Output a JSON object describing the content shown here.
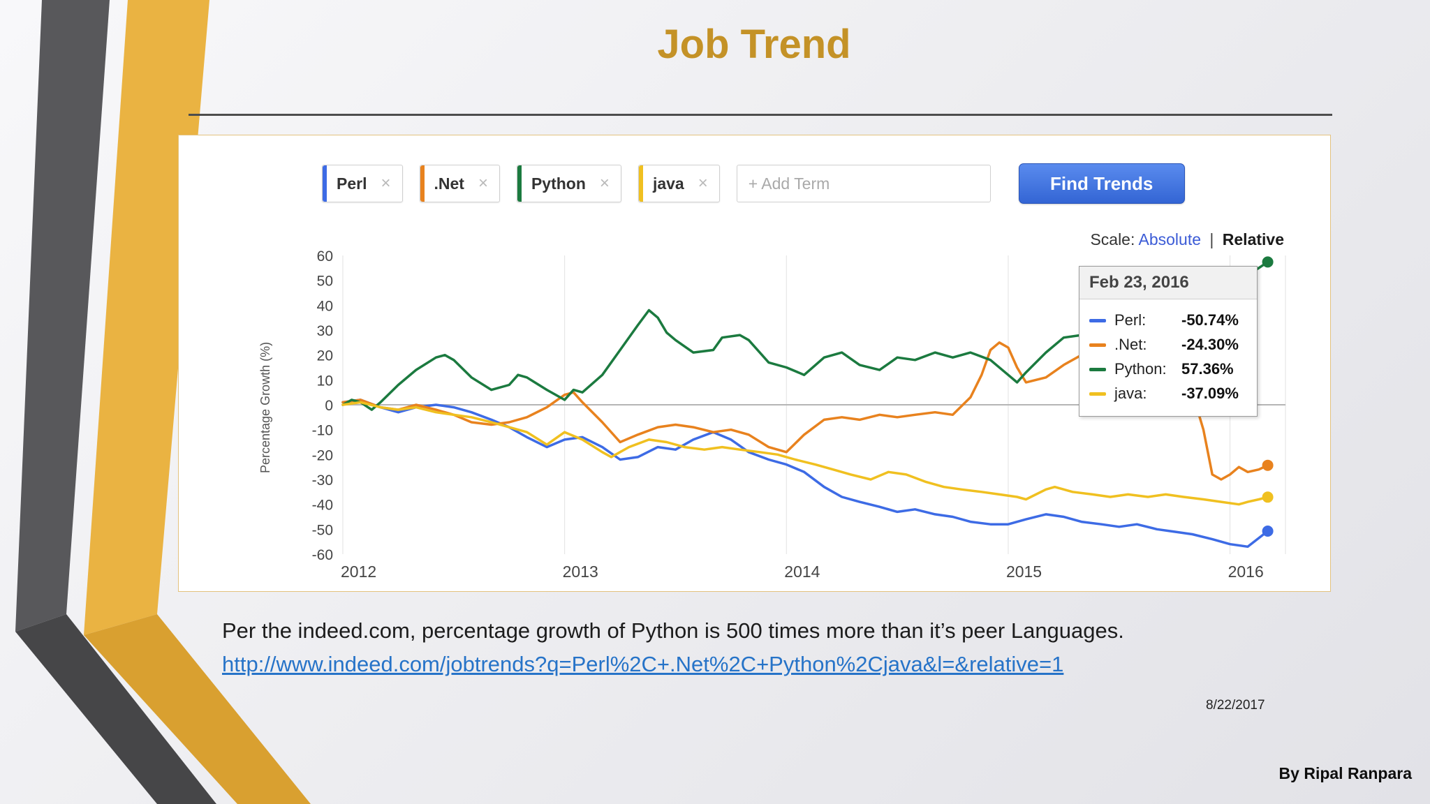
{
  "slide": {
    "title": "Job Trend",
    "caption": "Per the indeed.com, percentage growth of Python is 500 times more than it’s peer Languages.",
    "link_text": "http://www.indeed.com/jobtrends?q=Perl%2C+.Net%2C+Python%2Cjava&l=&relative=1",
    "date": "8/22/2017",
    "author": "By Ripal Ranpara"
  },
  "widget": {
    "terms": [
      {
        "label": "Perl",
        "color": "#3D6BE5"
      },
      {
        "label": ".Net",
        "color": "#E8821E"
      },
      {
        "label": "Python",
        "color": "#1B7A3F"
      },
      {
        "label": "java",
        "color": "#F0C020"
      }
    ],
    "remove_icon": "×",
    "add_term_placeholder": "+ Add Term",
    "find_trends_label": "Find Trends",
    "scale_label": "Scale:",
    "scale_absolute": "Absolute",
    "scale_separator": "|",
    "scale_relative": "Relative"
  },
  "tooltip": {
    "date": "Feb 23, 2016",
    "entries": [
      {
        "name": "Perl:",
        "value": "-50.74%",
        "color": "#3D6BE5"
      },
      {
        "name": ".Net:",
        "value": "-24.30%",
        "color": "#E8821E"
      },
      {
        "name": "Python:",
        "value": "57.36%",
        "color": "#1B7A3F"
      },
      {
        "name": "java:",
        "value": "-37.09%",
        "color": "#F0C020"
      }
    ]
  },
  "chart_data": {
    "type": "line",
    "title": "",
    "ylabel": "Percentage Growth (%)",
    "ylim": [
      -60,
      60
    ],
    "y_ticks": [
      60,
      50,
      40,
      30,
      20,
      10,
      0,
      -10,
      -20,
      -30,
      -40,
      -50,
      -60
    ],
    "x_range": [
      2012,
      2016.25
    ],
    "x_ticks": [
      2012,
      2013,
      2014,
      2015,
      2016
    ],
    "grid": "vertical year lines + zero line",
    "legend_position": "tooltip overlay (Feb 23, 2016)",
    "series": [
      {
        "name": "Perl",
        "color": "#3D6BE5",
        "end_value": -50.74,
        "points": [
          [
            2012,
            1
          ],
          [
            2012.08,
            2
          ],
          [
            2012.17,
            -1
          ],
          [
            2012.25,
            -3
          ],
          [
            2012.33,
            -1
          ],
          [
            2012.42,
            0
          ],
          [
            2012.5,
            -1
          ],
          [
            2012.58,
            -3
          ],
          [
            2012.67,
            -6
          ],
          [
            2012.75,
            -9
          ],
          [
            2012.83,
            -13
          ],
          [
            2012.92,
            -17
          ],
          [
            2013,
            -14
          ],
          [
            2013.08,
            -13
          ],
          [
            2013.17,
            -17
          ],
          [
            2013.25,
            -22
          ],
          [
            2013.33,
            -21
          ],
          [
            2013.42,
            -17
          ],
          [
            2013.5,
            -18
          ],
          [
            2013.58,
            -14
          ],
          [
            2013.67,
            -11
          ],
          [
            2013.75,
            -14
          ],
          [
            2013.83,
            -19
          ],
          [
            2013.92,
            -22
          ],
          [
            2014,
            -24
          ],
          [
            2014.08,
            -27
          ],
          [
            2014.17,
            -33
          ],
          [
            2014.25,
            -37
          ],
          [
            2014.33,
            -39
          ],
          [
            2014.42,
            -41
          ],
          [
            2014.5,
            -43
          ],
          [
            2014.58,
            -42
          ],
          [
            2014.67,
            -44
          ],
          [
            2014.75,
            -45
          ],
          [
            2014.83,
            -47
          ],
          [
            2014.92,
            -48
          ],
          [
            2015,
            -48
          ],
          [
            2015.08,
            -46
          ],
          [
            2015.17,
            -44
          ],
          [
            2015.25,
            -45
          ],
          [
            2015.33,
            -47
          ],
          [
            2015.42,
            -48
          ],
          [
            2015.5,
            -49
          ],
          [
            2015.58,
            -48
          ],
          [
            2015.67,
            -50
          ],
          [
            2015.75,
            -51
          ],
          [
            2015.83,
            -52
          ],
          [
            2015.92,
            -54
          ],
          [
            2016,
            -56
          ],
          [
            2016.08,
            -57
          ],
          [
            2016.17,
            -50.74
          ]
        ]
      },
      {
        "name": ".Net",
        "color": "#E8821E",
        "end_value": -24.3,
        "points": [
          [
            2012,
            1
          ],
          [
            2012.08,
            2
          ],
          [
            2012.17,
            -1
          ],
          [
            2012.25,
            -2
          ],
          [
            2012.33,
            0
          ],
          [
            2012.42,
            -2
          ],
          [
            2012.5,
            -4
          ],
          [
            2012.58,
            -7
          ],
          [
            2012.67,
            -8
          ],
          [
            2012.75,
            -7
          ],
          [
            2012.83,
            -5
          ],
          [
            2012.92,
            -1
          ],
          [
            2013,
            4
          ],
          [
            2013.04,
            5
          ],
          [
            2013.08,
            1
          ],
          [
            2013.17,
            -7
          ],
          [
            2013.25,
            -15
          ],
          [
            2013.33,
            -12
          ],
          [
            2013.42,
            -9
          ],
          [
            2013.5,
            -8
          ],
          [
            2013.58,
            -9
          ],
          [
            2013.67,
            -11
          ],
          [
            2013.75,
            -10
          ],
          [
            2013.83,
            -12
          ],
          [
            2013.92,
            -17
          ],
          [
            2014,
            -19
          ],
          [
            2014.08,
            -12
          ],
          [
            2014.17,
            -6
          ],
          [
            2014.25,
            -5
          ],
          [
            2014.33,
            -6
          ],
          [
            2014.42,
            -4
          ],
          [
            2014.5,
            -5
          ],
          [
            2014.58,
            -4
          ],
          [
            2014.67,
            -3
          ],
          [
            2014.75,
            -4
          ],
          [
            2014.83,
            3
          ],
          [
            2014.88,
            12
          ],
          [
            2014.92,
            22
          ],
          [
            2014.96,
            25
          ],
          [
            2015,
            23
          ],
          [
            2015.04,
            15
          ],
          [
            2015.08,
            9
          ],
          [
            2015.17,
            11
          ],
          [
            2015.25,
            16
          ],
          [
            2015.33,
            20
          ],
          [
            2015.42,
            18
          ],
          [
            2015.5,
            15
          ],
          [
            2015.58,
            13
          ],
          [
            2015.67,
            12
          ],
          [
            2015.75,
            10
          ],
          [
            2015.83,
            5
          ],
          [
            2015.88,
            -10
          ],
          [
            2015.92,
            -28
          ],
          [
            2015.96,
            -30
          ],
          [
            2016,
            -28
          ],
          [
            2016.04,
            -25
          ],
          [
            2016.08,
            -27
          ],
          [
            2016.13,
            -26
          ],
          [
            2016.17,
            -24.3
          ]
        ]
      },
      {
        "name": "Python",
        "color": "#1B7A3F",
        "end_value": 57.36,
        "points": [
          [
            2012,
            0
          ],
          [
            2012.04,
            2
          ],
          [
            2012.08,
            1
          ],
          [
            2012.13,
            -2
          ],
          [
            2012.17,
            1
          ],
          [
            2012.25,
            8
          ],
          [
            2012.33,
            14
          ],
          [
            2012.42,
            19
          ],
          [
            2012.46,
            20
          ],
          [
            2012.5,
            18
          ],
          [
            2012.58,
            11
          ],
          [
            2012.67,
            6
          ],
          [
            2012.75,
            8
          ],
          [
            2012.79,
            12
          ],
          [
            2012.83,
            11
          ],
          [
            2012.92,
            6
          ],
          [
            2013,
            2
          ],
          [
            2013.04,
            6
          ],
          [
            2013.08,
            5
          ],
          [
            2013.17,
            12
          ],
          [
            2013.25,
            22
          ],
          [
            2013.33,
            32
          ],
          [
            2013.38,
            38
          ],
          [
            2013.42,
            35
          ],
          [
            2013.46,
            29
          ],
          [
            2013.5,
            26
          ],
          [
            2013.58,
            21
          ],
          [
            2013.67,
            22
          ],
          [
            2013.71,
            27
          ],
          [
            2013.79,
            28
          ],
          [
            2013.83,
            26
          ],
          [
            2013.92,
            17
          ],
          [
            2014,
            15
          ],
          [
            2014.08,
            12
          ],
          [
            2014.17,
            19
          ],
          [
            2014.25,
            21
          ],
          [
            2014.33,
            16
          ],
          [
            2014.42,
            14
          ],
          [
            2014.5,
            19
          ],
          [
            2014.58,
            18
          ],
          [
            2014.67,
            21
          ],
          [
            2014.75,
            19
          ],
          [
            2014.83,
            21
          ],
          [
            2014.92,
            18
          ],
          [
            2015,
            12
          ],
          [
            2015.04,
            9
          ],
          [
            2015.08,
            13
          ],
          [
            2015.17,
            21
          ],
          [
            2015.25,
            27
          ],
          [
            2015.33,
            28
          ],
          [
            2015.42,
            27
          ],
          [
            2015.5,
            29
          ],
          [
            2015.58,
            31
          ],
          [
            2015.67,
            33
          ],
          [
            2015.75,
            36
          ],
          [
            2015.83,
            39
          ],
          [
            2015.92,
            43
          ],
          [
            2016,
            47
          ],
          [
            2016.08,
            52
          ],
          [
            2016.17,
            57.36
          ]
        ]
      },
      {
        "name": "java",
        "color": "#F0C020",
        "end_value": -37.09,
        "points": [
          [
            2012,
            0
          ],
          [
            2012.08,
            1
          ],
          [
            2012.17,
            -1
          ],
          [
            2012.25,
            -2
          ],
          [
            2012.33,
            -1
          ],
          [
            2012.42,
            -3
          ],
          [
            2012.5,
            -4
          ],
          [
            2012.58,
            -5
          ],
          [
            2012.67,
            -7
          ],
          [
            2012.75,
            -9
          ],
          [
            2012.83,
            -11
          ],
          [
            2012.92,
            -16
          ],
          [
            2013,
            -11
          ],
          [
            2013.08,
            -14
          ],
          [
            2013.17,
            -19
          ],
          [
            2013.21,
            -21
          ],
          [
            2013.29,
            -17
          ],
          [
            2013.38,
            -14
          ],
          [
            2013.46,
            -15
          ],
          [
            2013.54,
            -17
          ],
          [
            2013.63,
            -18
          ],
          [
            2013.71,
            -17
          ],
          [
            2013.79,
            -18
          ],
          [
            2013.88,
            -19
          ],
          [
            2013.96,
            -20
          ],
          [
            2014.04,
            -22
          ],
          [
            2014.13,
            -24
          ],
          [
            2014.21,
            -26
          ],
          [
            2014.29,
            -28
          ],
          [
            2014.38,
            -30
          ],
          [
            2014.46,
            -27
          ],
          [
            2014.54,
            -28
          ],
          [
            2014.63,
            -31
          ],
          [
            2014.71,
            -33
          ],
          [
            2014.79,
            -34
          ],
          [
            2014.88,
            -35
          ],
          [
            2014.96,
            -36
          ],
          [
            2015.04,
            -37
          ],
          [
            2015.08,
            -38
          ],
          [
            2015.17,
            -34
          ],
          [
            2015.21,
            -33
          ],
          [
            2015.29,
            -35
          ],
          [
            2015.38,
            -36
          ],
          [
            2015.46,
            -37
          ],
          [
            2015.54,
            -36
          ],
          [
            2015.63,
            -37
          ],
          [
            2015.71,
            -36
          ],
          [
            2015.79,
            -37
          ],
          [
            2015.88,
            -38
          ],
          [
            2015.96,
            -39
          ],
          [
            2016.04,
            -40
          ],
          [
            2016.08,
            -39
          ],
          [
            2016.13,
            -38
          ],
          [
            2016.17,
            -37.09
          ]
        ]
      }
    ]
  }
}
